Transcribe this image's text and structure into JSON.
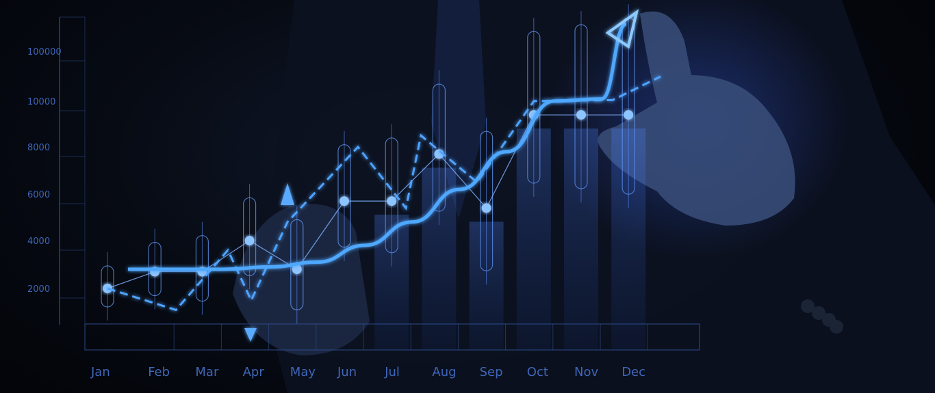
{
  "chart_data": {
    "type": "line",
    "categories": [
      "Jan",
      "Feb",
      "Mar",
      "Apr",
      "May",
      "Jun",
      "Jul",
      "Aug",
      "Sep",
      "Oct",
      "Nov",
      "Dec"
    ],
    "y_tick_labels": [
      "2000",
      "4000",
      "6000",
      "8000",
      "10000",
      "100000"
    ],
    "series": [
      {
        "values": [
          2000,
          2700,
          2700,
          4000,
          2800,
          5700,
          5700,
          7700,
          5400,
          9400,
          9400,
          9400
        ]
      },
      {
        "values": [
          2000,
          1100,
          3600,
          1500,
          4800,
          8000,
          5400,
          8500,
          6500,
          10200,
          12000,
          null
        ]
      },
      {
        "values": [
          2800,
          2800,
          2800,
          2900,
          3100,
          3800,
          4800,
          6200,
          7800,
          10200,
          14000,
          100000
        ]
      }
    ]
  },
  "colors": {
    "glow": "#4fa8ff",
    "grid": "#2f4f8f",
    "accent": "#1f6bff"
  }
}
